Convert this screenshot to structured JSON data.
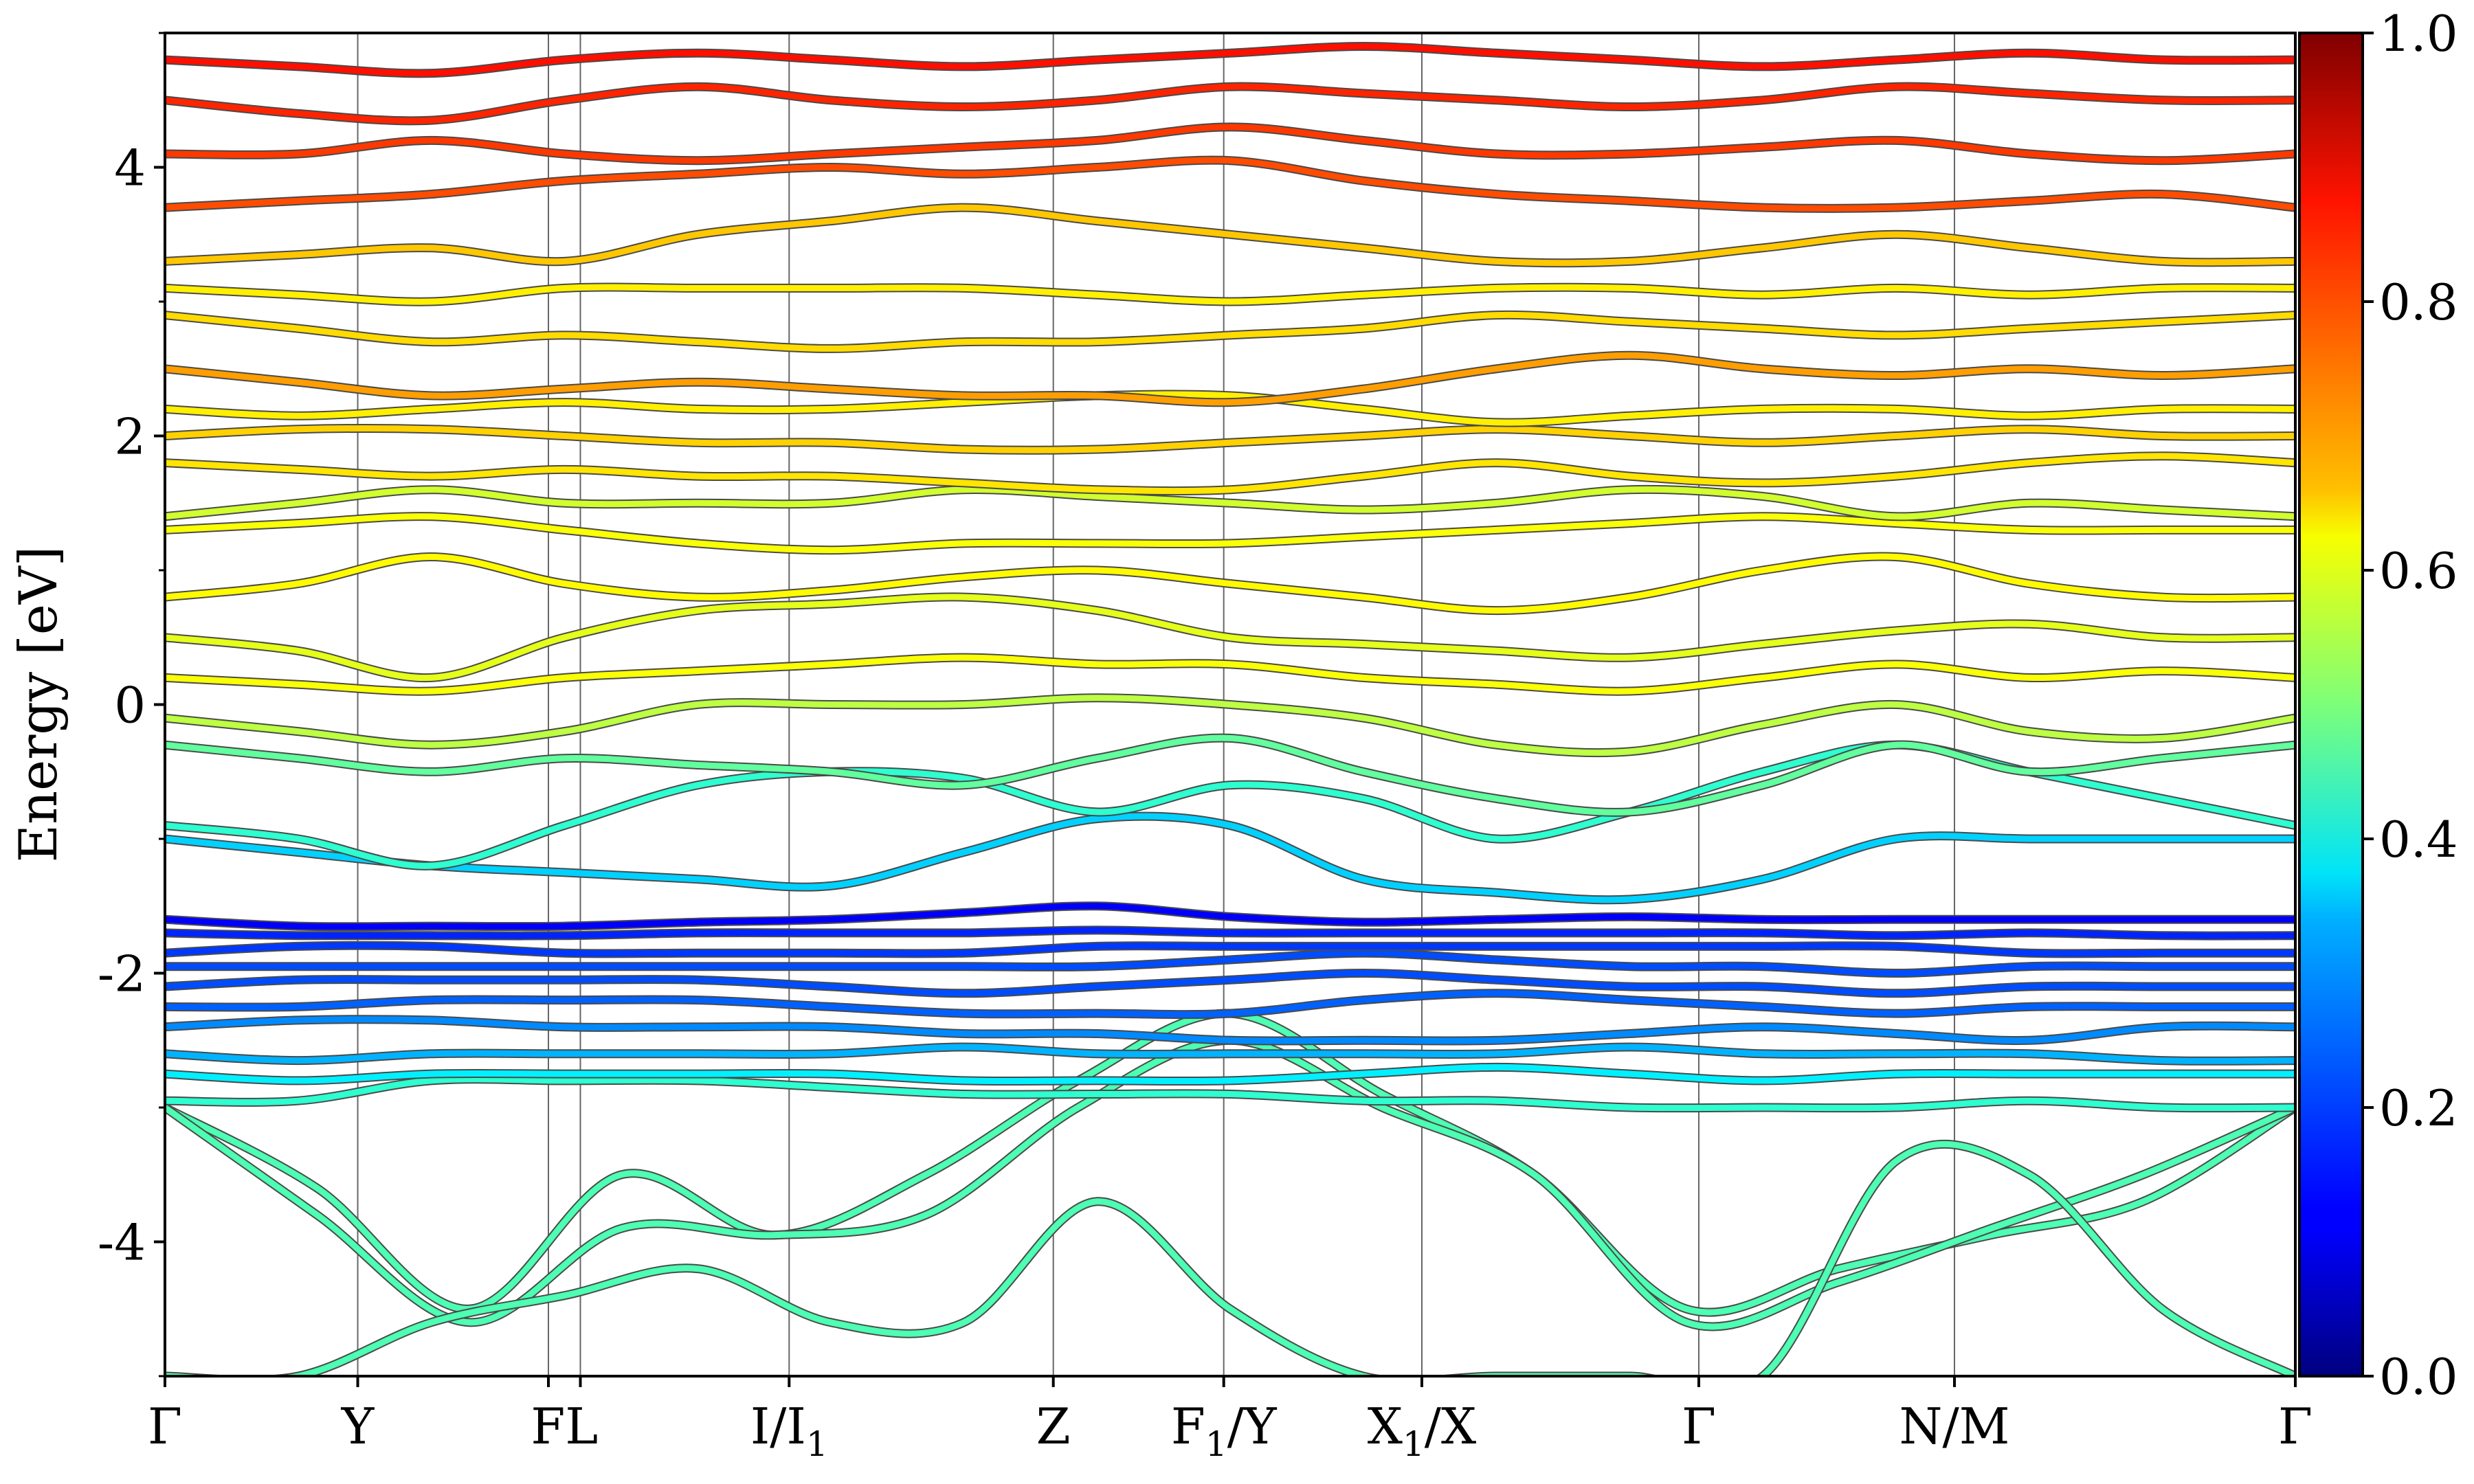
{
  "chart_data": {
    "type": "line",
    "title": "",
    "xlabel": "",
    "ylabel": "Energy [eV]",
    "ylim": [
      -5,
      5
    ],
    "yticks": [
      -4,
      -2,
      0,
      2,
      4
    ],
    "ytick_labels": [
      "-4",
      "-2",
      "0",
      "2",
      "4"
    ],
    "xlim": [
      0,
      1
    ],
    "kpoints": [
      {
        "label": "Γ",
        "x": 0.0,
        "base": "Γ",
        "sub": ""
      },
      {
        "label": "Y",
        "x": 0.0905,
        "base": "Y",
        "sub": ""
      },
      {
        "label": "F",
        "x": 0.18,
        "base": "F",
        "sub": ""
      },
      {
        "label": "L",
        "x": 0.195,
        "base": "L",
        "sub": ""
      },
      {
        "label": "I/I1",
        "x": 0.293,
        "base": "I/I",
        "sub": "1"
      },
      {
        "label": "Z",
        "x": 0.417,
        "base": "Z",
        "sub": ""
      },
      {
        "label": "F1/Y",
        "x": 0.497,
        "base": "F",
        "sub": "1",
        "after": "/Y"
      },
      {
        "label": "X1/X",
        "x": 0.59,
        "base": "X",
        "sub": "1",
        "after": "/X"
      },
      {
        "label": "Γ",
        "x": 0.72,
        "base": "Γ",
        "sub": ""
      },
      {
        "label": "N/M",
        "x": 0.84,
        "base": "N/M",
        "sub": ""
      },
      {
        "label": "Γ",
        "x": 1.0,
        "base": "Γ",
        "sub": ""
      }
    ],
    "colorbar": {
      "colormap": "jet",
      "range": [
        0.0,
        1.0
      ],
      "ticks": [
        0.0,
        0.2,
        0.4,
        0.6,
        0.8,
        1.0
      ],
      "tick_labels": [
        "0.0",
        "0.2",
        "0.4",
        "0.6",
        "0.8",
        "1.0"
      ]
    },
    "series": [
      {
        "values": [
          -3.0,
          -3.6,
          -4.5,
          -3.5,
          -3.95,
          -3.5,
          -2.8,
          -2.3,
          -2.9,
          -3.5,
          -4.5,
          -4.2,
          -3.95,
          -3.7,
          -3.0
        ],
        "weight": 0.45
      },
      {
        "values": [
          -3.0,
          -3.8,
          -4.6,
          -3.9,
          -3.95,
          -3.8,
          -3.0,
          -2.5,
          -3.0,
          -3.5,
          -4.6,
          -4.3,
          -3.9,
          -3.5,
          -3.0
        ],
        "weight": 0.45
      },
      {
        "values": [
          -5.0,
          -5.0,
          -4.6,
          -4.4,
          -4.2,
          -4.6,
          -4.6,
          -3.7,
          -4.5,
          -5.0,
          -5.0,
          -5.0,
          -5.0,
          -3.4,
          -3.5,
          -4.5,
          -5.0
        ],
        "weight": 0.45
      },
      {
        "values": [
          -2.95,
          -2.95,
          -2.8,
          -2.8,
          -2.8,
          -2.85,
          -2.9,
          -2.9,
          -2.9,
          -2.95,
          -2.95,
          -3.0,
          -3.0,
          -3.0,
          -2.95,
          -3.0,
          -3.0
        ],
        "weight": 0.42
      },
      {
        "values": [
          -2.75,
          -2.8,
          -2.75,
          -2.75,
          -2.75,
          -2.75,
          -2.8,
          -2.8,
          -2.8,
          -2.75,
          -2.7,
          -2.75,
          -2.8,
          -2.75,
          -2.75,
          -2.75,
          -2.75
        ],
        "weight": 0.36
      },
      {
        "values": [
          -2.6,
          -2.65,
          -2.6,
          -2.6,
          -2.6,
          -2.6,
          -2.55,
          -2.6,
          -2.6,
          -2.6,
          -2.6,
          -2.55,
          -2.6,
          -2.6,
          -2.6,
          -2.65,
          -2.65
        ],
        "weight": 0.3
      },
      {
        "values": [
          -2.4,
          -2.35,
          -2.35,
          -2.4,
          -2.4,
          -2.4,
          -2.45,
          -2.45,
          -2.5,
          -2.5,
          -2.5,
          -2.45,
          -2.4,
          -2.45,
          -2.5,
          -2.4,
          -2.4
        ],
        "weight": 0.26
      },
      {
        "values": [
          -2.25,
          -2.25,
          -2.2,
          -2.2,
          -2.2,
          -2.25,
          -2.3,
          -2.3,
          -2.3,
          -2.2,
          -2.15,
          -2.2,
          -2.25,
          -2.3,
          -2.25,
          -2.25,
          -2.25
        ],
        "weight": 0.22
      },
      {
        "values": [
          -2.1,
          -2.05,
          -2.05,
          -2.05,
          -2.05,
          -2.1,
          -2.15,
          -2.1,
          -2.05,
          -2.0,
          -2.05,
          -2.1,
          -2.1,
          -2.15,
          -2.1,
          -2.1,
          -2.1
        ],
        "weight": 0.2
      },
      {
        "values": [
          -1.95,
          -1.95,
          -1.95,
          -1.95,
          -1.95,
          -1.95,
          -1.95,
          -1.95,
          -1.9,
          -1.85,
          -1.9,
          -1.95,
          -1.95,
          -2.0,
          -1.95,
          -1.95,
          -1.95
        ],
        "weight": 0.2
      },
      {
        "values": [
          -1.85,
          -1.8,
          -1.8,
          -1.85,
          -1.85,
          -1.85,
          -1.85,
          -1.8,
          -1.8,
          -1.8,
          -1.8,
          -1.8,
          -1.8,
          -1.8,
          -1.85,
          -1.85,
          -1.85
        ],
        "weight": 0.18
      },
      {
        "values": [
          -1.7,
          -1.72,
          -1.72,
          -1.72,
          -1.7,
          -1.7,
          -1.7,
          -1.68,
          -1.7,
          -1.7,
          -1.7,
          -1.7,
          -1.7,
          -1.72,
          -1.7,
          -1.72,
          -1.72
        ],
        "weight": 0.16
      },
      {
        "values": [
          -1.6,
          -1.65,
          -1.65,
          -1.65,
          -1.62,
          -1.6,
          -1.55,
          -1.5,
          -1.58,
          -1.62,
          -1.6,
          -1.58,
          -1.6,
          -1.6,
          -1.6,
          -1.6,
          -1.6
        ],
        "weight": 0.12
      },
      {
        "values": [
          -1.0,
          -1.1,
          -1.2,
          -1.25,
          -1.3,
          -1.35,
          -1.1,
          -0.85,
          -0.9,
          -1.3,
          -1.4,
          -1.45,
          -1.3,
          -1.0,
          -1.0,
          -1.0,
          -1.0
        ],
        "weight": 0.33
      },
      {
        "values": [
          -0.9,
          -1.0,
          -1.2,
          -0.9,
          -0.6,
          -0.5,
          -0.55,
          -0.8,
          -0.6,
          -0.7,
          -1.0,
          -0.8,
          -0.5,
          -0.3,
          -0.5,
          -0.7,
          -0.9
        ],
        "weight": 0.42
      },
      {
        "values": [
          -0.3,
          -0.4,
          -0.5,
          -0.4,
          -0.45,
          -0.5,
          -0.6,
          -0.4,
          -0.25,
          -0.5,
          -0.7,
          -0.8,
          -0.6,
          -0.3,
          -0.5,
          -0.4,
          -0.3
        ],
        "weight": 0.47
      },
      {
        "values": [
          -0.1,
          -0.2,
          -0.3,
          -0.2,
          0.0,
          0.0,
          0.0,
          0.05,
          0.0,
          -0.1,
          -0.3,
          -0.35,
          -0.15,
          0.0,
          -0.2,
          -0.25,
          -0.1
        ],
        "weight": 0.56
      },
      {
        "values": [
          0.2,
          0.15,
          0.1,
          0.2,
          0.25,
          0.3,
          0.35,
          0.3,
          0.3,
          0.2,
          0.15,
          0.1,
          0.2,
          0.3,
          0.2,
          0.25,
          0.2
        ],
        "weight": 0.62
      },
      {
        "values": [
          0.5,
          0.4,
          0.2,
          0.5,
          0.7,
          0.75,
          0.8,
          0.7,
          0.5,
          0.45,
          0.4,
          0.35,
          0.45,
          0.55,
          0.6,
          0.5,
          0.5
        ],
        "weight": 0.6
      },
      {
        "values": [
          0.8,
          0.9,
          1.1,
          0.9,
          0.8,
          0.85,
          0.95,
          1.0,
          0.9,
          0.8,
          0.7,
          0.8,
          1.0,
          1.1,
          0.9,
          0.8,
          0.8
        ],
        "weight": 0.63
      },
      {
        "values": [
          1.3,
          1.35,
          1.4,
          1.3,
          1.2,
          1.15,
          1.2,
          1.2,
          1.2,
          1.25,
          1.3,
          1.35,
          1.4,
          1.35,
          1.3,
          1.3,
          1.3
        ],
        "weight": 0.62
      },
      {
        "values": [
          1.4,
          1.5,
          1.6,
          1.5,
          1.5,
          1.5,
          1.6,
          1.55,
          1.5,
          1.45,
          1.5,
          1.6,
          1.55,
          1.4,
          1.5,
          1.45,
          1.4
        ],
        "weight": 0.58
      },
      {
        "values": [
          1.8,
          1.75,
          1.7,
          1.75,
          1.7,
          1.7,
          1.65,
          1.6,
          1.6,
          1.7,
          1.8,
          1.7,
          1.65,
          1.7,
          1.8,
          1.85,
          1.8
        ],
        "weight": 0.65
      },
      {
        "values": [
          2.0,
          2.05,
          2.05,
          2.0,
          1.95,
          1.95,
          1.9,
          1.9,
          1.95,
          2.0,
          2.05,
          2.0,
          1.95,
          2.0,
          2.05,
          2.0,
          2.0
        ],
        "weight": 0.67
      },
      {
        "values": [
          2.2,
          2.15,
          2.2,
          2.25,
          2.2,
          2.2,
          2.25,
          2.3,
          2.3,
          2.2,
          2.1,
          2.15,
          2.2,
          2.2,
          2.15,
          2.2,
          2.2
        ],
        "weight": 0.64
      },
      {
        "values": [
          2.5,
          2.4,
          2.3,
          2.35,
          2.4,
          2.35,
          2.3,
          2.3,
          2.25,
          2.35,
          2.5,
          2.6,
          2.5,
          2.45,
          2.5,
          2.45,
          2.5
        ],
        "weight": 0.72
      },
      {
        "values": [
          2.9,
          2.8,
          2.7,
          2.75,
          2.7,
          2.65,
          2.7,
          2.7,
          2.75,
          2.8,
          2.9,
          2.85,
          2.8,
          2.75,
          2.8,
          2.85,
          2.9
        ],
        "weight": 0.66
      },
      {
        "values": [
          3.1,
          3.05,
          3.0,
          3.1,
          3.1,
          3.1,
          3.1,
          3.05,
          3.0,
          3.05,
          3.1,
          3.1,
          3.05,
          3.1,
          3.05,
          3.1,
          3.1
        ],
        "weight": 0.64
      },
      {
        "values": [
          3.3,
          3.35,
          3.4,
          3.3,
          3.5,
          3.6,
          3.7,
          3.6,
          3.5,
          3.4,
          3.3,
          3.3,
          3.4,
          3.5,
          3.4,
          3.3,
          3.3
        ],
        "weight": 0.68
      },
      {
        "values": [
          3.7,
          3.75,
          3.8,
          3.9,
          3.95,
          4.0,
          3.95,
          4.0,
          4.05,
          3.9,
          3.8,
          3.75,
          3.7,
          3.7,
          3.75,
          3.8,
          3.7
        ],
        "weight": 0.8
      },
      {
        "values": [
          4.1,
          4.1,
          4.2,
          4.1,
          4.05,
          4.1,
          4.15,
          4.2,
          4.3,
          4.2,
          4.1,
          4.1,
          4.15,
          4.2,
          4.1,
          4.05,
          4.1
        ],
        "weight": 0.82
      },
      {
        "values": [
          4.5,
          4.4,
          4.35,
          4.5,
          4.6,
          4.5,
          4.45,
          4.5,
          4.6,
          4.55,
          4.5,
          4.45,
          4.5,
          4.6,
          4.55,
          4.5,
          4.5
        ],
        "weight": 0.84
      },
      {
        "values": [
          4.8,
          4.75,
          4.7,
          4.8,
          4.85,
          4.8,
          4.75,
          4.8,
          4.85,
          4.9,
          4.85,
          4.8,
          4.75,
          4.8,
          4.85,
          4.8,
          4.8
        ],
        "weight": 0.86
      }
    ]
  }
}
